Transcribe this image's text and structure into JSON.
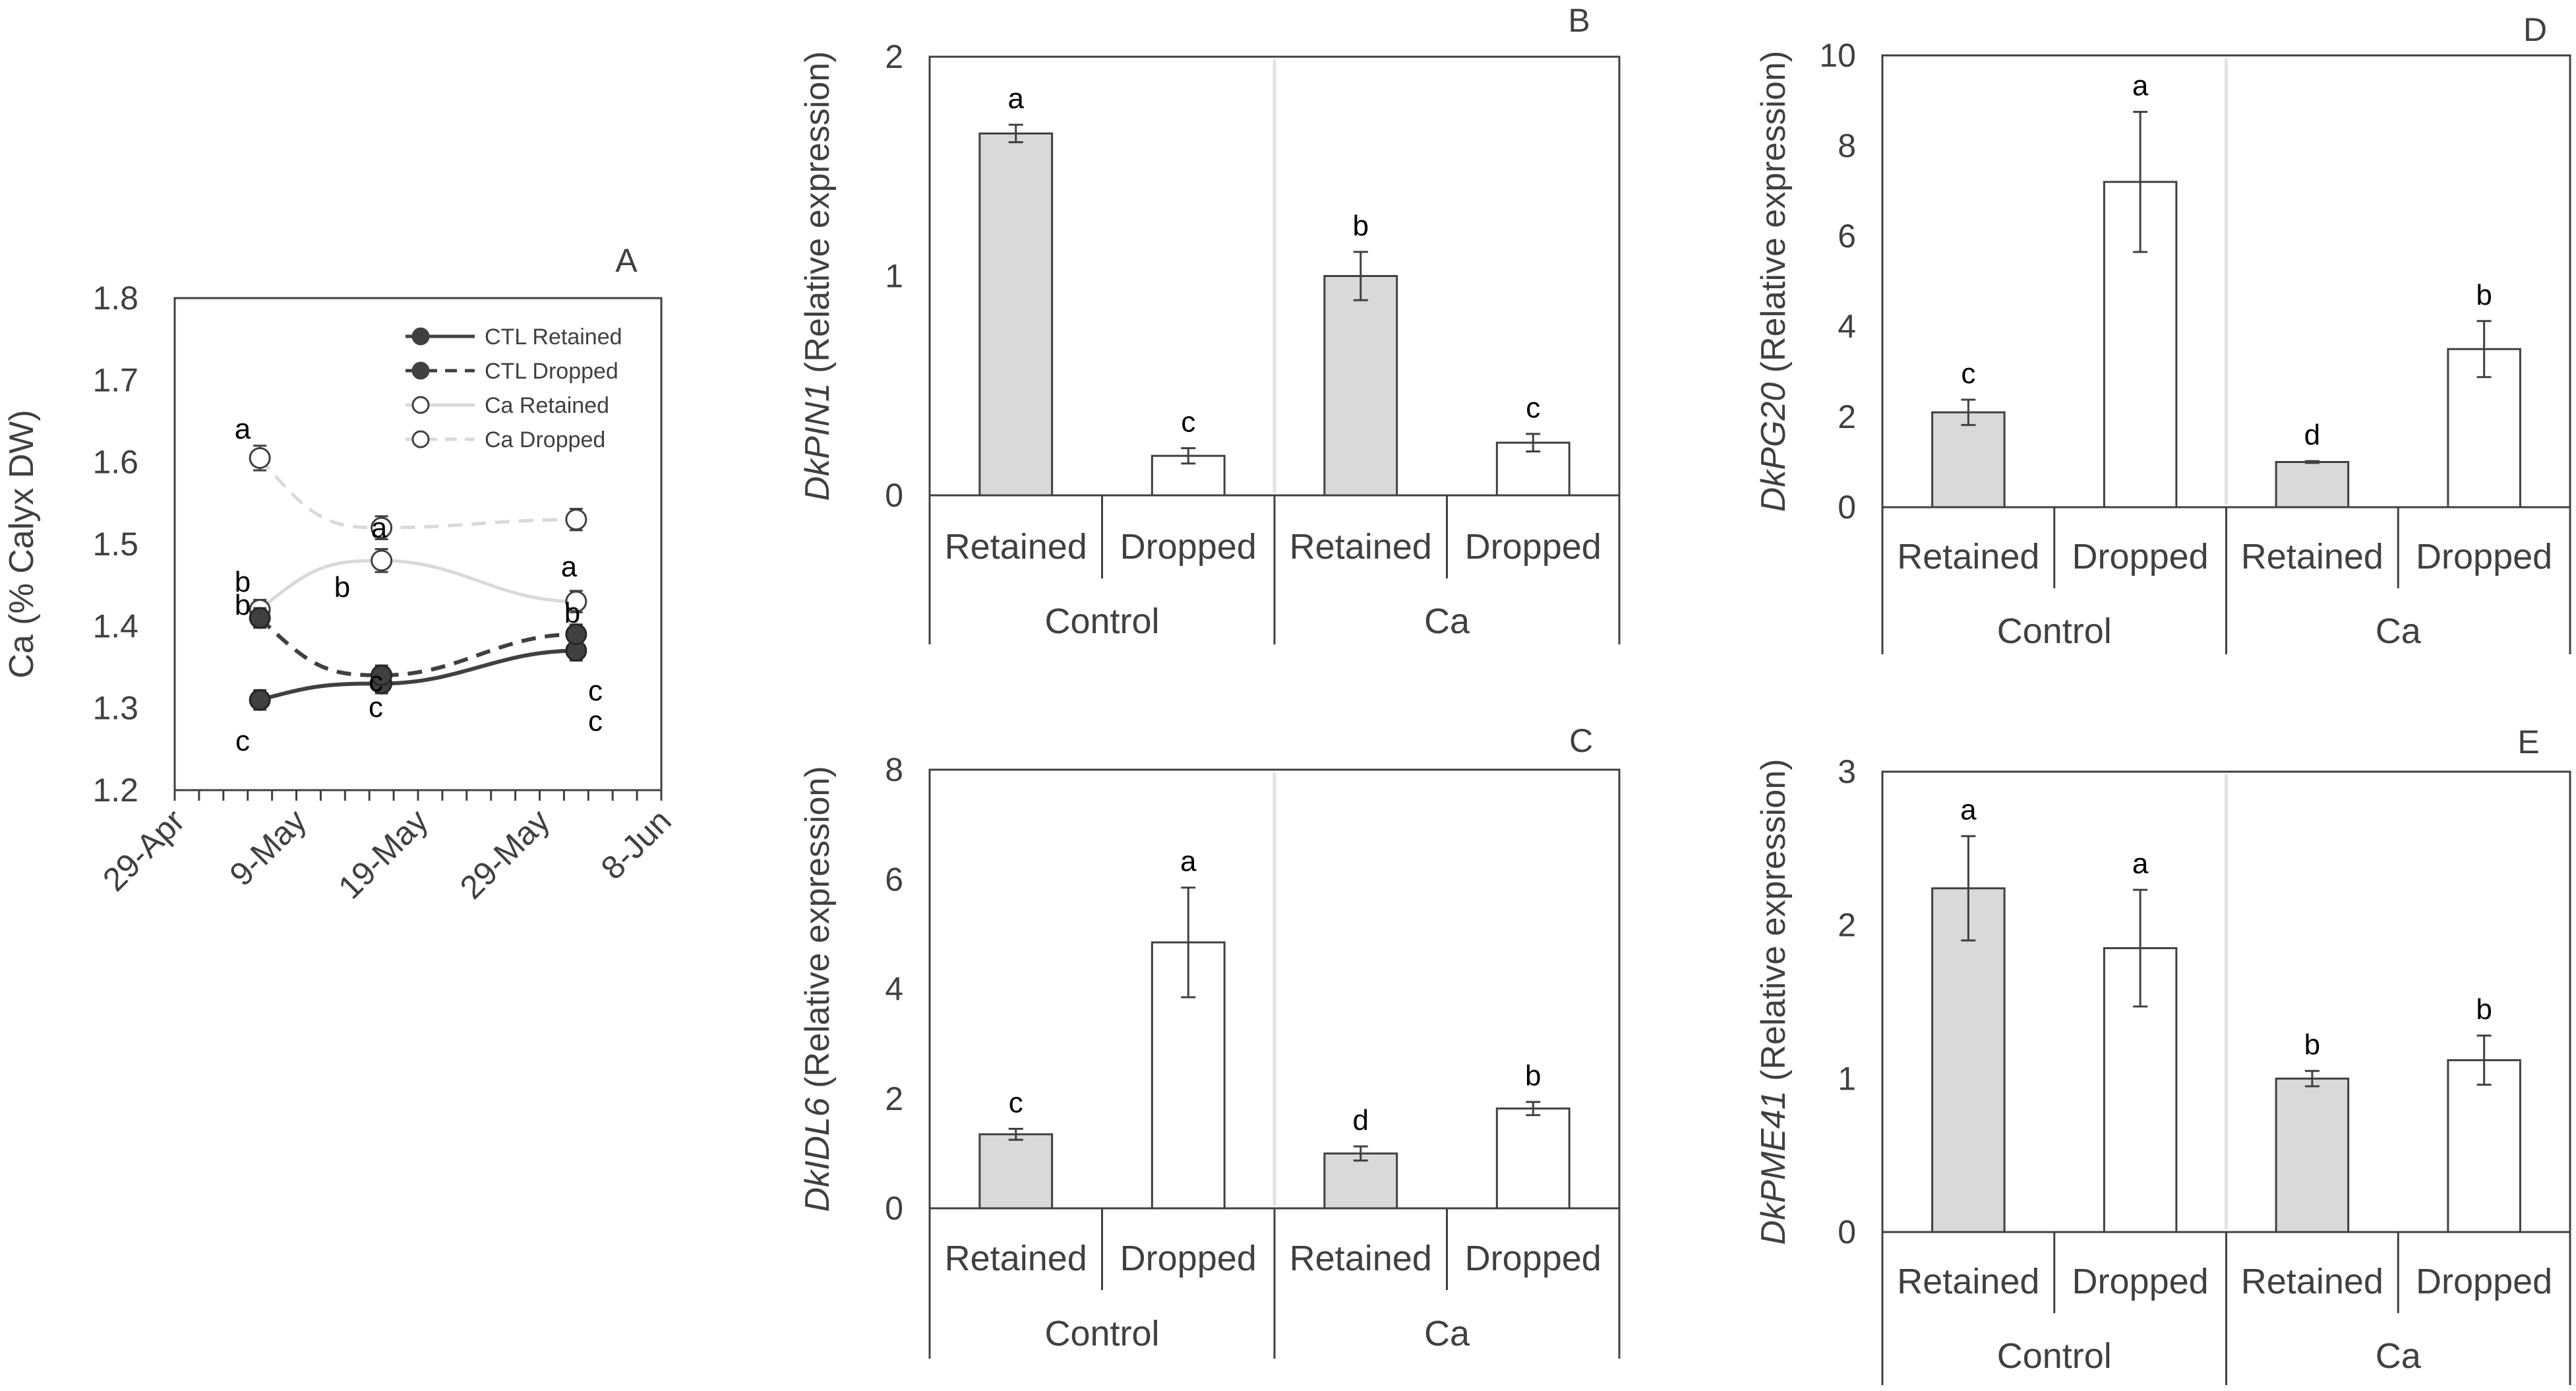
{
  "chart_data": [
    {
      "id": "A",
      "type": "line",
      "panel_letter": "A",
      "ylabel": "Ca (% Calyx DW)",
      "xlabel": "",
      "ylim": [
        1.2,
        1.8
      ],
      "yticks": [
        "1.2",
        "1.3",
        "1.4",
        "1.5",
        "1.6",
        "1.7",
        "1.8"
      ],
      "x_tick_labels": [
        "29-Apr",
        "9-May",
        "19-May",
        "29-May",
        "8-Jun"
      ],
      "x": [
        "6-May",
        "16-May",
        "1-Jun"
      ],
      "series": [
        {
          "name": "CTL Retained",
          "values": [
            1.31,
            1.33,
            1.37
          ],
          "errors": [
            0.012,
            0.012,
            0.012
          ],
          "letters": [
            "c",
            "c",
            "c"
          ],
          "style": "solid",
          "color": "#404040",
          "marker": "filled"
        },
        {
          "name": "CTL Dropped",
          "values": [
            1.41,
            1.34,
            1.39
          ],
          "errors": [
            0.012,
            0.012,
            0.012
          ],
          "letters": [
            "b",
            "c",
            "c"
          ],
          "style": "dashed",
          "color": "#404040",
          "marker": "filled"
        },
        {
          "name": "Ca Retained",
          "values": [
            1.42,
            1.48,
            1.43
          ],
          "errors": [
            0.012,
            0.014,
            0.013
          ],
          "letters": [
            "b",
            "b",
            "b"
          ],
          "style": "solid",
          "color": "#d9d9d9",
          "marker": "open"
        },
        {
          "name": "Ca Dropped",
          "values": [
            1.605,
            1.52,
            1.53
          ],
          "errors": [
            0.015,
            0.014,
            0.013
          ],
          "letters": [
            "a",
            "a",
            "a"
          ],
          "style": "dashed",
          "color": "#d9d9d9",
          "marker": "open"
        }
      ]
    },
    {
      "id": "B",
      "type": "bar",
      "panel_letter": "B",
      "gene": "DkPIN1",
      "ylabel_rest": " (Relative expression)",
      "ylim": [
        0,
        2
      ],
      "yticks": [
        "0",
        "1",
        "2"
      ],
      "categories": [
        "Retained",
        "Dropped",
        "Retained",
        "Dropped"
      ],
      "groups": [
        "Control",
        "Ca"
      ],
      "values": [
        1.65,
        0.18,
        1.0,
        0.24
      ],
      "errors": [
        0.04,
        0.035,
        0.11,
        0.04
      ],
      "letters": [
        "a",
        "c",
        "b",
        "c"
      ]
    },
    {
      "id": "C",
      "type": "bar",
      "panel_letter": "C",
      "gene": "DkIDL6",
      "ylabel_rest": " (Relative expression)",
      "ylim": [
        0,
        8
      ],
      "yticks": [
        "0",
        "2",
        "4",
        "6",
        "8"
      ],
      "categories": [
        "Retained",
        "Dropped",
        "Retained",
        "Dropped"
      ],
      "groups": [
        "Control",
        "Ca"
      ],
      "values": [
        1.35,
        4.85,
        1.0,
        1.82
      ],
      "errors": [
        0.1,
        1.0,
        0.13,
        0.12
      ],
      "letters": [
        "c",
        "a",
        "d",
        "b"
      ]
    },
    {
      "id": "D",
      "type": "bar",
      "panel_letter": "D",
      "gene": "DkPG20",
      "ylabel_rest": " (Relative expression)",
      "ylim": [
        0,
        10
      ],
      "yticks": [
        "0",
        "2",
        "4",
        "6",
        "8",
        "10"
      ],
      "categories": [
        "Retained",
        "Dropped",
        "Retained",
        "Dropped"
      ],
      "groups": [
        "Control",
        "Ca"
      ],
      "values": [
        2.1,
        7.2,
        1.0,
        3.5
      ],
      "errors": [
        0.28,
        1.55,
        0.02,
        0.62
      ],
      "letters": [
        "c",
        "a",
        "d",
        "b"
      ]
    },
    {
      "id": "E",
      "type": "bar",
      "panel_letter": "E",
      "gene": "DkPME41",
      "ylabel_rest": " (Relative expression)",
      "ylim": [
        0,
        3
      ],
      "yticks": [
        "0",
        "1",
        "2",
        "3"
      ],
      "categories": [
        "Retained",
        "Dropped",
        "Retained",
        "Dropped"
      ],
      "groups": [
        "Control",
        "Ca"
      ],
      "values": [
        2.24,
        1.85,
        1.0,
        1.12
      ],
      "errors": [
        0.34,
        0.38,
        0.05,
        0.16
      ],
      "letters": [
        "a",
        "a",
        "b",
        "b"
      ]
    }
  ]
}
